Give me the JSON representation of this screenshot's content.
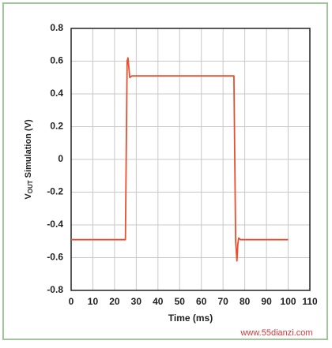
{
  "chart_data": {
    "type": "line",
    "y_label_parts": [
      "V",
      "OUT",
      " Simulation (V)"
    ],
    "x_label": "Time (ms)",
    "watermark": "www.55dianzi.com",
    "x": [
      0,
      25,
      25.8,
      26.2,
      26.6,
      27,
      28,
      75,
      75.8,
      76.4,
      76.8,
      77.2,
      78,
      100
    ],
    "series": [
      {
        "color": "#e8502f",
        "values": [
          -0.49,
          -0.49,
          0.6,
          0.62,
          0.56,
          0.5,
          0.51,
          0.51,
          -0.5,
          -0.62,
          -0.52,
          -0.48,
          -0.49,
          -0.49
        ]
      }
    ],
    "xlim": [
      0,
      110
    ],
    "xticks": [
      0,
      10,
      20,
      30,
      40,
      50,
      60,
      70,
      80,
      90,
      100,
      110
    ],
    "ylim": [
      -0.8,
      0.8
    ],
    "yticks": [
      0.8,
      0.6,
      0.4,
      0.2,
      0,
      -0.2,
      -0.4,
      -0.6,
      -0.8
    ],
    "grid": true
  }
}
